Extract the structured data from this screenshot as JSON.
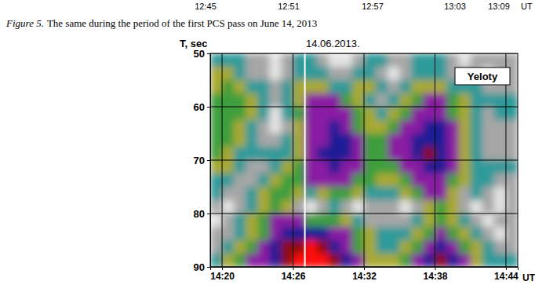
{
  "caption": {
    "label": "Figure 5.",
    "text": "The same during the period of the first PCS pass on June 14, 2013"
  },
  "cut_axis": {
    "ticks": [
      "12:45",
      "12:51",
      "12:57",
      "13:03",
      "13:09"
    ],
    "unit": "UT"
  },
  "chart_data": {
    "type": "heatmap",
    "title": "14.06.2013.",
    "y_label": "T, sec",
    "x_label": "UT",
    "annotation": "Yeloty",
    "xlim": [
      859,
      885
    ],
    "xticks": [
      {
        "value": 860,
        "label": "14:20"
      },
      {
        "value": 866,
        "label": "14:26"
      },
      {
        "value": 872,
        "label": "14:32"
      },
      {
        "value": 878,
        "label": "14:38"
      },
      {
        "value": 884,
        "label": "14:44"
      }
    ],
    "ylim": [
      50,
      90
    ],
    "yticks": [
      50,
      60,
      70,
      80,
      90
    ],
    "grid": true,
    "pass_time": 867,
    "zlim": [
      0,
      8
    ],
    "x": [
      859.5,
      860.5,
      861.5,
      862.5,
      863.5,
      864.5,
      865.5,
      866.5,
      867.5,
      868.5,
      869.5,
      870.5,
      871.5,
      872.5,
      873.5,
      874.5,
      875.5,
      876.5,
      877.5,
      878.5,
      879.5,
      880.5,
      881.5,
      882.5,
      883.5,
      884.5
    ],
    "y": [
      51.25,
      53.75,
      56.25,
      58.75,
      61.25,
      63.75,
      66.25,
      68.75,
      71.25,
      73.75,
      76.25,
      78.75,
      81.25,
      83.75,
      86.25,
      88.75
    ],
    "cells": [
      [
        2,
        2,
        2,
        1,
        1,
        0,
        1,
        2,
        2,
        1,
        0,
        0,
        1,
        2,
        2,
        1,
        1,
        2,
        2,
        2,
        1,
        0,
        1,
        1,
        1,
        1
      ],
      [
        3,
        3,
        2,
        1,
        1,
        0,
        1,
        2,
        2,
        2,
        1,
        1,
        2,
        2,
        1,
        0,
        1,
        2,
        2,
        2,
        1,
        1,
        1,
        0,
        1,
        1
      ],
      [
        3,
        4,
        3,
        2,
        2,
        1,
        2,
        3,
        3,
        3,
        2,
        2,
        3,
        3,
        2,
        1,
        2,
        3,
        3,
        3,
        2,
        2,
        2,
        1,
        1,
        1
      ],
      [
        4,
        4,
        4,
        3,
        2,
        1,
        2,
        3,
        5,
        5,
        5,
        4,
        3,
        2,
        1,
        2,
        3,
        4,
        5,
        5,
        4,
        3,
        2,
        2,
        2,
        2
      ],
      [
        4,
        4,
        4,
        3,
        2,
        0,
        2,
        4,
        5,
        5,
        5,
        5,
        4,
        3,
        2,
        3,
        4,
        5,
        5,
        5,
        4,
        3,
        2,
        1,
        2,
        2
      ],
      [
        4,
        4,
        3,
        2,
        1,
        0,
        1,
        3,
        5,
        5,
        6,
        5,
        4,
        3,
        3,
        4,
        5,
        5,
        6,
        6,
        5,
        3,
        2,
        1,
        1,
        1
      ],
      [
        4,
        4,
        3,
        2,
        1,
        1,
        2,
        3,
        5,
        5,
        6,
        6,
        5,
        4,
        4,
        5,
        5,
        6,
        6,
        6,
        5,
        3,
        2,
        1,
        1,
        1
      ],
      [
        4,
        3,
        2,
        2,
        2,
        2,
        2,
        3,
        5,
        6,
        6,
        6,
        5,
        4,
        4,
        5,
        5,
        6,
        7,
        6,
        5,
        3,
        2,
        1,
        1,
        1
      ],
      [
        3,
        3,
        2,
        1,
        1,
        2,
        3,
        4,
        5,
        5,
        6,
        5,
        5,
        4,
        4,
        4,
        5,
        5,
        6,
        6,
        5,
        3,
        2,
        2,
        2,
        2
      ],
      [
        2,
        2,
        1,
        1,
        2,
        3,
        4,
        4,
        5,
        5,
        5,
        5,
        4,
        4,
        3,
        3,
        4,
        5,
        5,
        5,
        4,
        3,
        2,
        2,
        1,
        1
      ],
      [
        2,
        1,
        1,
        2,
        3,
        4,
        4,
        3,
        2,
        3,
        4,
        4,
        3,
        2,
        2,
        2,
        3,
        4,
        5,
        5,
        3,
        1,
        2,
        1,
        0,
        1
      ],
      [
        1,
        0,
        1,
        2,
        3,
        4,
        3,
        1,
        0,
        1,
        2,
        1,
        0,
        1,
        1,
        1,
        0,
        1,
        3,
        4,
        3,
        1,
        0,
        1,
        0,
        1
      ],
      [
        0,
        1,
        2,
        3,
        4,
        5,
        5,
        5,
        4,
        4,
        4,
        3,
        2,
        1,
        1,
        1,
        1,
        2,
        3,
        4,
        3,
        2,
        1,
        0,
        1,
        1
      ],
      [
        1,
        1,
        2,
        3,
        4,
        5,
        6,
        6,
        6,
        6,
        5,
        5,
        4,
        3,
        2,
        2,
        2,
        3,
        4,
        5,
        4,
        3,
        2,
        1,
        0,
        1
      ],
      [
        1,
        2,
        3,
        4,
        5,
        6,
        7,
        7,
        8,
        7,
        6,
        5,
        4,
        3,
        2,
        2,
        3,
        4,
        5,
        6,
        5,
        4,
        3,
        2,
        1,
        1
      ],
      [
        2,
        3,
        4,
        5,
        5,
        6,
        7,
        8,
        8,
        8,
        7,
        6,
        5,
        3,
        3,
        3,
        4,
        5,
        6,
        7,
        6,
        5,
        3,
        2,
        2,
        2
      ]
    ]
  }
}
